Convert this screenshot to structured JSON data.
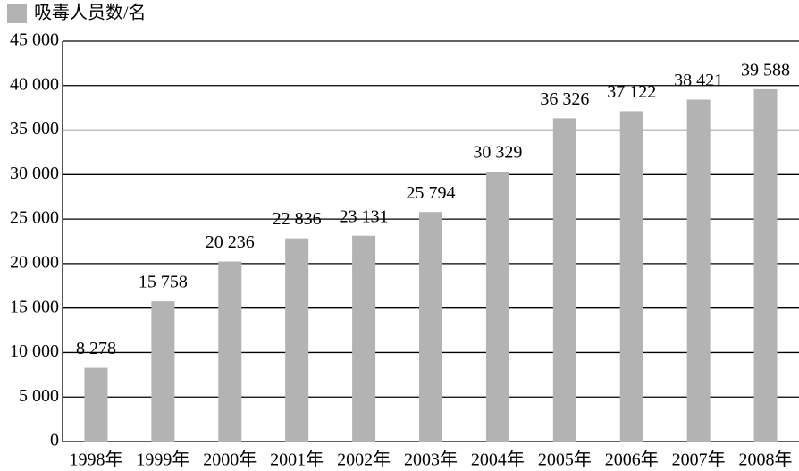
{
  "chart_data": {
    "type": "bar",
    "legend": "吸毒人员数/名",
    "categories": [
      "1998年",
      "1999年",
      "2000年",
      "2001年",
      "2002年",
      "2003年",
      "2004年",
      "2005年",
      "2006年",
      "2007年",
      "2008年"
    ],
    "values": [
      8278,
      15758,
      20236,
      22836,
      23131,
      25794,
      30329,
      36326,
      37122,
      38421,
      39588
    ],
    "value_labels": [
      "8 278",
      "15 758",
      "20 236",
      "22 836",
      "23 131",
      "25 794",
      "30 329",
      "36 326",
      "37 122",
      "38 421",
      "39 588"
    ],
    "color": "#b3b3b3",
    "ylim": [
      0,
      45000
    ],
    "yticks": [
      0,
      {
        "value": 5000,
        "label": "5 000"
      },
      {
        "value": 10000,
        "label": "10 000"
      },
      {
        "value": 15000,
        "label": "15 000"
      },
      {
        "value": 20000,
        "label": "20 000"
      },
      {
        "value": 25000,
        "label": "25 000"
      },
      {
        "value": 30000,
        "label": "30 000"
      },
      {
        "value": 35000,
        "label": "35 000"
      },
      {
        "value": 40000,
        "label": "40 000"
      },
      {
        "value": 45000,
        "label": "45 000"
      }
    ],
    "grid": true
  }
}
